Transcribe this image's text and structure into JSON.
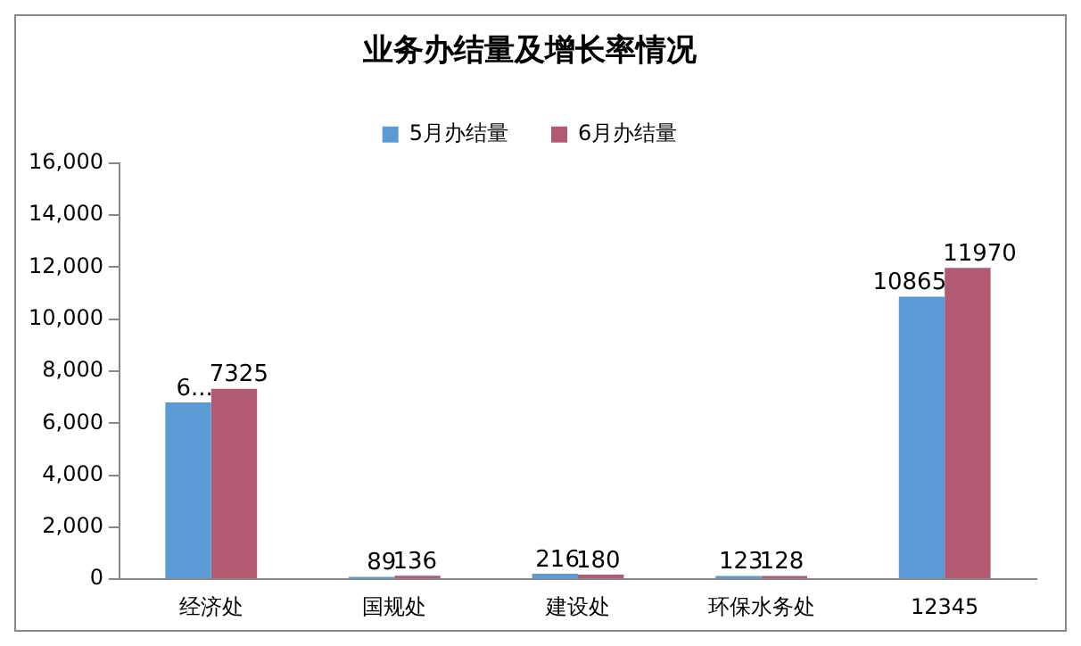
{
  "chart_data": {
    "type": "bar",
    "title": "业务办结量及增长率情况",
    "categories": [
      "经济处",
      "国规处",
      "建设处",
      "环保水务处",
      "12345"
    ],
    "series": [
      {
        "name": "5月办结量",
        "color": "#5b9bd5",
        "values": [
          6800,
          89,
          216,
          123,
          10865
        ],
        "value_labels": [
          "6...",
          "89",
          "216",
          "123",
          "10865"
        ]
      },
      {
        "name": "6月办结量",
        "color": "#b35a73",
        "values": [
          7325,
          136,
          180,
          128,
          11970
        ],
        "value_labels": [
          "7325",
          "136",
          "180",
          "128",
          "11970"
        ]
      }
    ],
    "ylim": [
      0,
      16000
    ],
    "yticks": [
      {
        "value": 0,
        "label": "0"
      },
      {
        "value": 2000,
        "label": "2,000"
      },
      {
        "value": 4000,
        "label": "4,000"
      },
      {
        "value": 6000,
        "label": "6,000"
      },
      {
        "value": 8000,
        "label": "8,000"
      },
      {
        "value": 10000,
        "label": "10,000"
      },
      {
        "value": 12000,
        "label": "12,000"
      },
      {
        "value": 14000,
        "label": "14,000"
      },
      {
        "value": 16000,
        "label": "16,000"
      }
    ],
    "legend": "top",
    "grid": false
  }
}
